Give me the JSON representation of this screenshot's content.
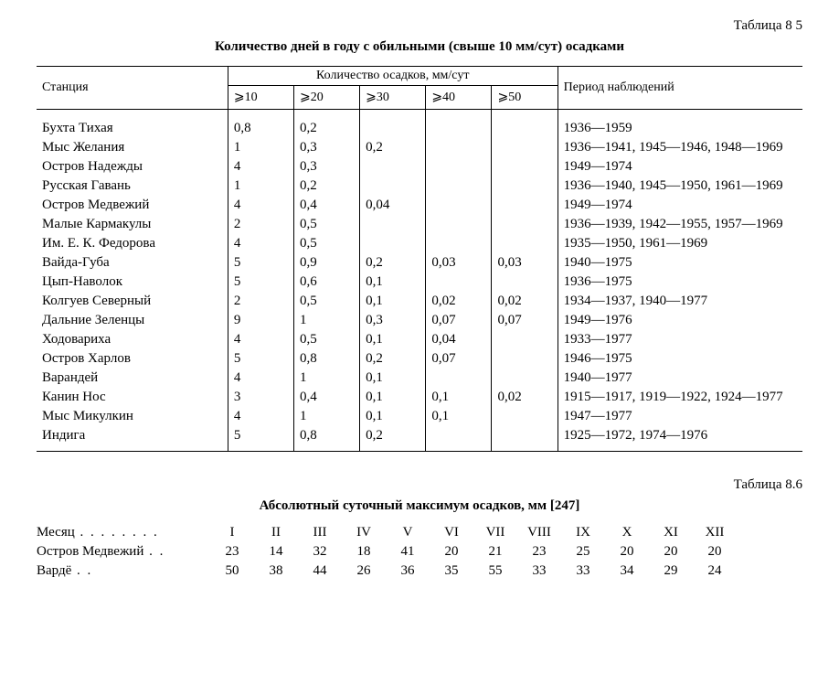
{
  "table85": {
    "label": "Таблица 8 5",
    "title": "Количество дней в году с обильными (свыше 10 мм/сут) осадками",
    "group_header": "Количество осадков, мм/сут",
    "station_header": "Станция",
    "period_header": "Период наблюдений",
    "col_headers": [
      "⩾10",
      "⩾20",
      "⩾30",
      "⩾40",
      "⩾50"
    ],
    "rows": [
      {
        "station": "Бухта Тихая",
        "v": [
          "0,8",
          "0,2",
          "",
          "",
          ""
        ],
        "period": "1936—1959"
      },
      {
        "station": "Мыс Желания",
        "v": [
          "1",
          "0,3",
          "0,2",
          "",
          ""
        ],
        "period": "1936—1941, 1945—1946, 1948—1969"
      },
      {
        "station": "Остров Надежды",
        "v": [
          "4",
          "0,3",
          "",
          "",
          ""
        ],
        "period": "1949—1974"
      },
      {
        "station": "Русская Гавань",
        "v": [
          "1",
          "0,2",
          "",
          "",
          ""
        ],
        "period": "1936—1940, 1945—1950, 1961—1969"
      },
      {
        "station": "Остров Медвежий",
        "v": [
          "4",
          "0,4",
          "0,04",
          "",
          ""
        ],
        "period": "1949—1974"
      },
      {
        "station": "Малые Кармакулы",
        "v": [
          "2",
          "0,5",
          "",
          "",
          ""
        ],
        "period": "1936—1939, 1942—1955, 1957—1969"
      },
      {
        "station": "Им. Е. К. Федорова",
        "v": [
          "4",
          "0,5",
          "",
          "",
          ""
        ],
        "period": "1935—1950, 1961—1969"
      },
      {
        "station": "Вайда-Губа",
        "v": [
          "5",
          "0,9",
          "0,2",
          "0,03",
          "0,03"
        ],
        "period": "1940—1975"
      },
      {
        "station": "Цып-Наволок",
        "v": [
          "5",
          "0,6",
          "0,1",
          "",
          ""
        ],
        "period": "1936—1975"
      },
      {
        "station": "Колгуев Северный",
        "v": [
          "2",
          "0,5",
          "0,1",
          "0,02",
          "0,02"
        ],
        "period": "1934—1937, 1940—1977"
      },
      {
        "station": "Дальние Зеленцы",
        "v": [
          "9",
          "1",
          "0,3",
          "0,07",
          "0,07"
        ],
        "period": "1949—1976"
      },
      {
        "station": "Ходовариха",
        "v": [
          "4",
          "0,5",
          "0,1",
          "0,04",
          ""
        ],
        "period": "1933—1977"
      },
      {
        "station": "Остров Харлов",
        "v": [
          "5",
          "0,8",
          "0,2",
          "0,07",
          ""
        ],
        "period": "1946—1975"
      },
      {
        "station": "Варандей",
        "v": [
          "4",
          "1",
          "0,1",
          "",
          ""
        ],
        "period": "1940—1977"
      },
      {
        "station": "Канин Нос",
        "v": [
          "3",
          "0,4",
          "0,1",
          "0,1",
          "0,02"
        ],
        "period": "1915—1917, 1919—1922, 1924—1977"
      },
      {
        "station": "Мыс Микулкин",
        "v": [
          "4",
          "1",
          "0,1",
          "0,1",
          ""
        ],
        "period": "1947—1977"
      },
      {
        "station": "Индига",
        "v": [
          "5",
          "0,8",
          "0,2",
          "",
          ""
        ],
        "period": "1925—1972, 1974—1976"
      }
    ]
  },
  "table86": {
    "label": "Таблица 8.6",
    "title": "Абсолютный суточный максимум осадков, мм [247]",
    "month_label": "Месяц",
    "months": [
      "I",
      "II",
      "III",
      "IV",
      "V",
      "VI",
      "VII",
      "VIII",
      "IX",
      "X",
      "XI",
      "XII"
    ],
    "rows": [
      {
        "name": "Остров Медвежий",
        "v": [
          "23",
          "14",
          "32",
          "18",
          "41",
          "20",
          "21",
          "23",
          "25",
          "20",
          "20",
          "20"
        ]
      },
      {
        "name": "Вардё",
        "v": [
          "50",
          "38",
          "44",
          "26",
          "36",
          "35",
          "55",
          "33",
          "33",
          "34",
          "29",
          "24"
        ]
      }
    ]
  }
}
